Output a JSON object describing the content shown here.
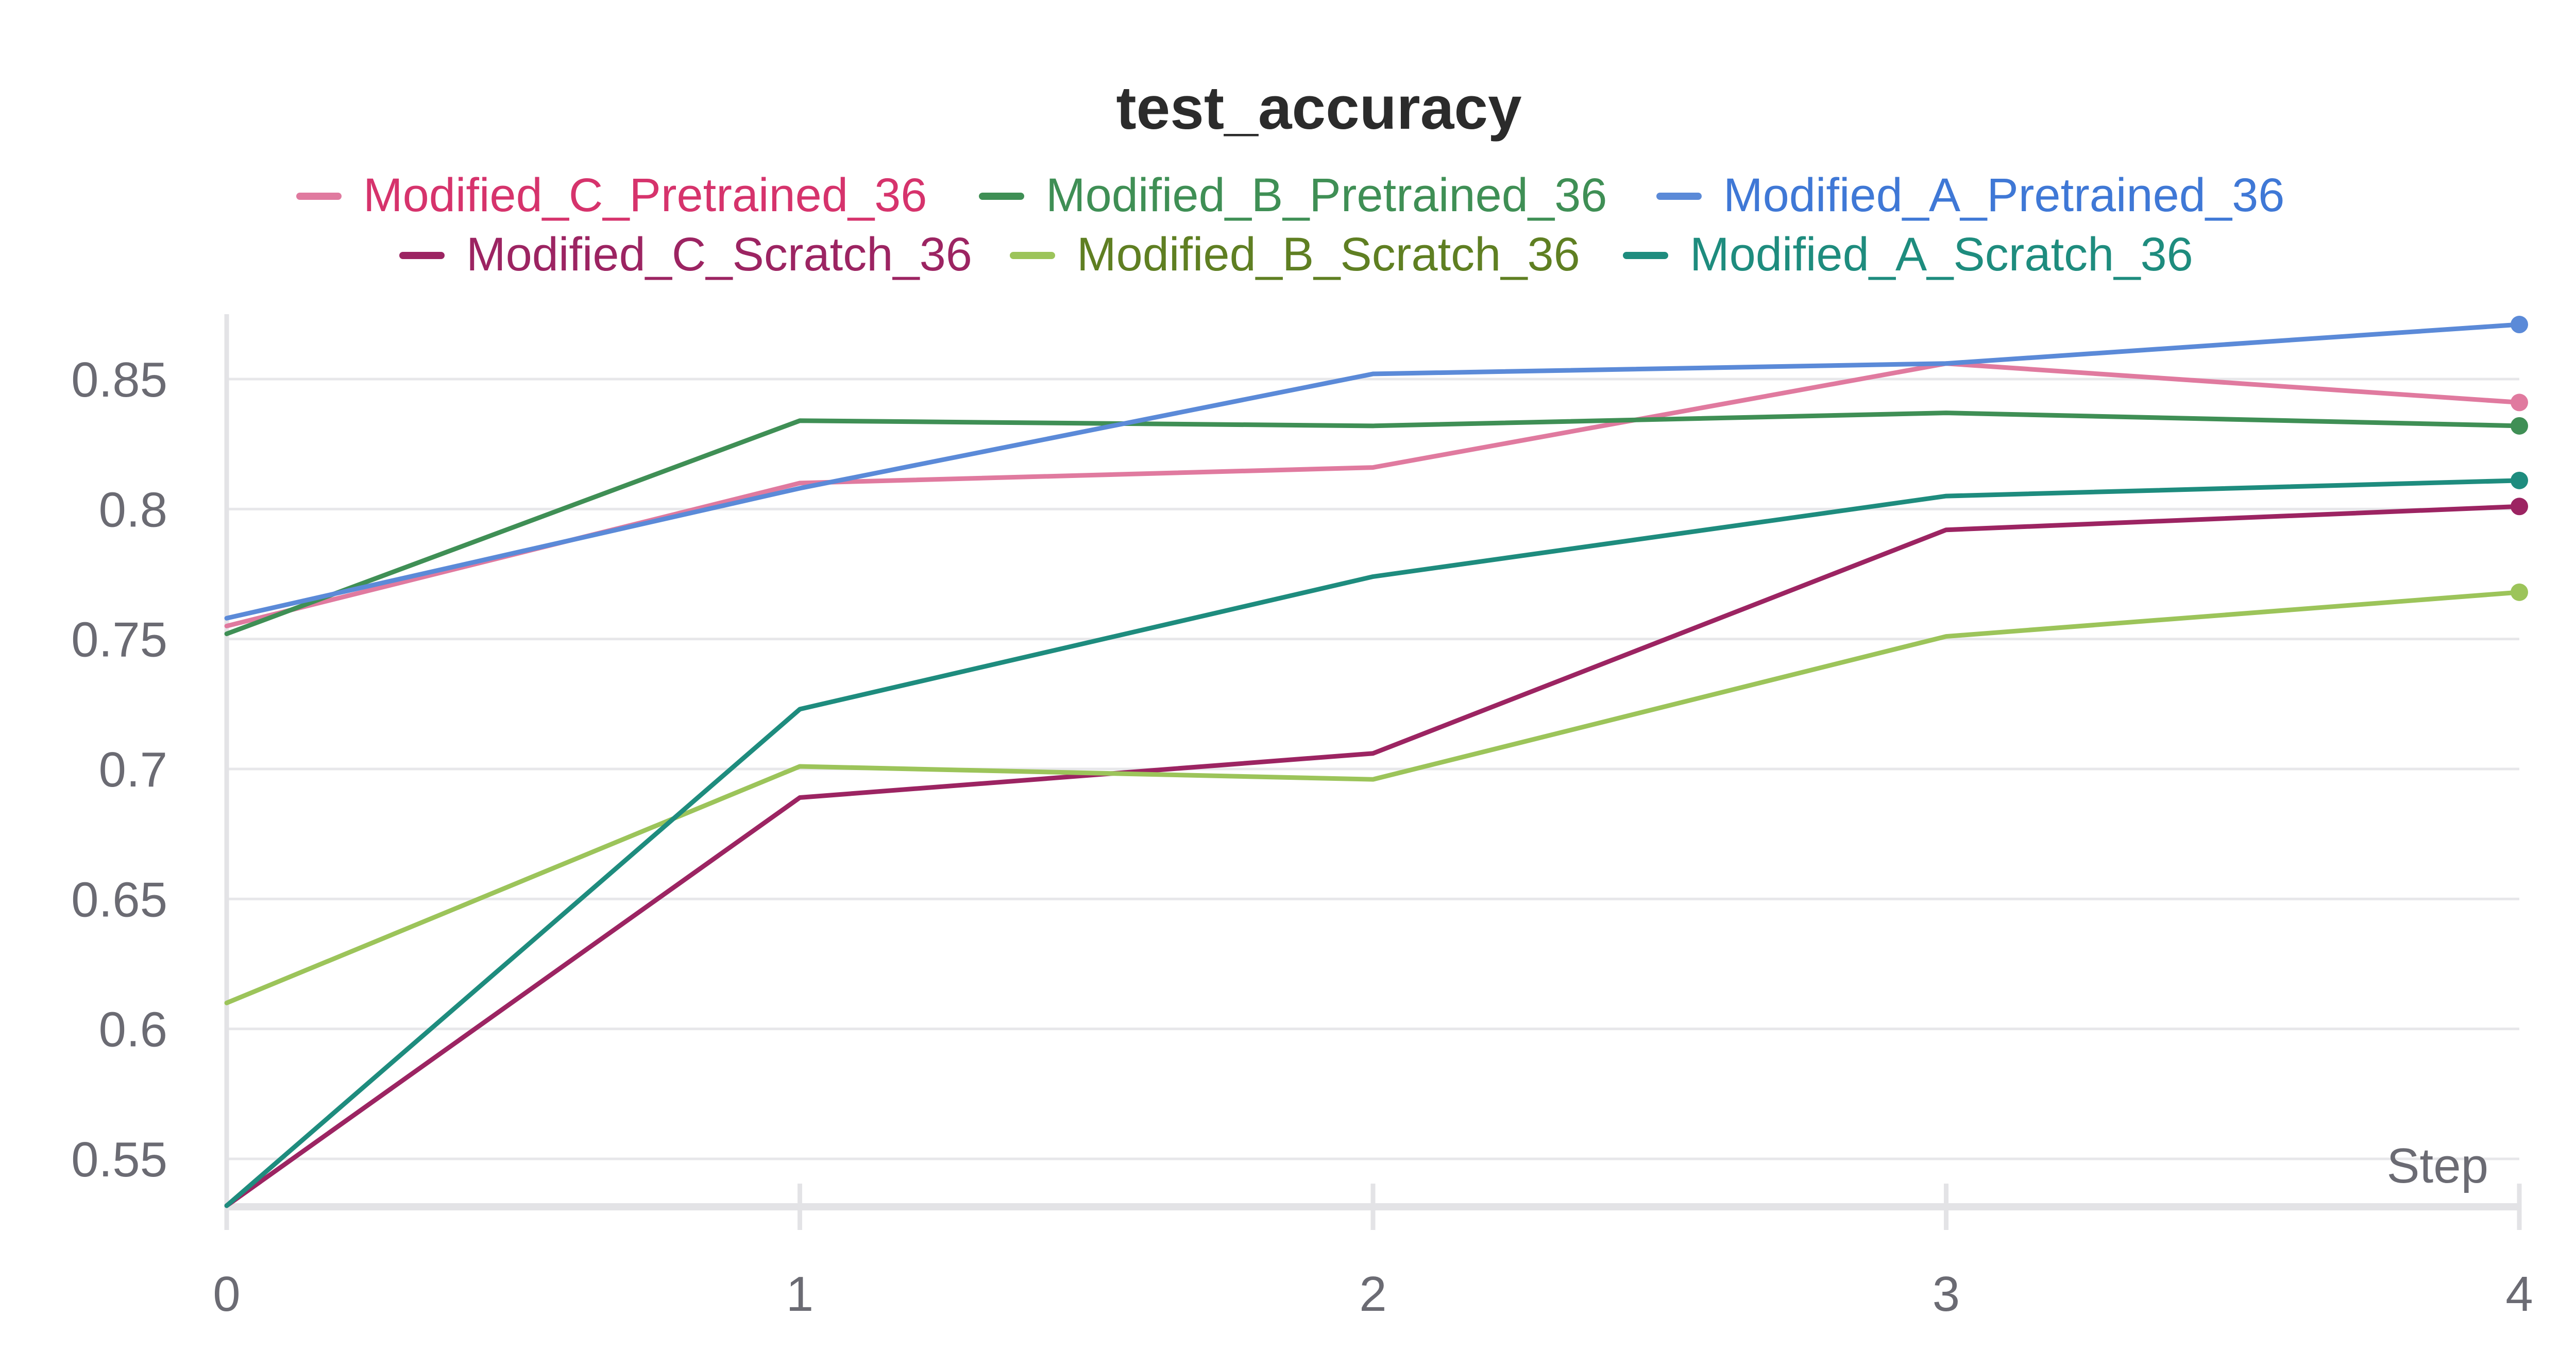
{
  "chart_data": {
    "type": "line",
    "title": "test_accuracy",
    "xlabel": "Step",
    "ylabel": "",
    "x": [
      0,
      1,
      2,
      3,
      4
    ],
    "xlim": [
      0,
      4
    ],
    "ylim": [
      0.532,
      0.87
    ],
    "y_ticks": [
      0.55,
      0.6,
      0.65,
      0.7,
      0.75,
      0.8,
      0.85
    ],
    "y_tick_labels": [
      "0.55",
      "0.6",
      "0.65",
      "0.7",
      "0.75",
      "0.8",
      "0.85"
    ],
    "x_ticks": [
      0,
      1,
      2,
      3,
      4
    ],
    "x_tick_labels": [
      "0",
      "1",
      "2",
      "3",
      "4"
    ],
    "grid": true,
    "legend_position": "top-center",
    "series": [
      {
        "name": "Modified_C_Pretrained_36",
        "color": "#e07a9f",
        "text_color": "#d6336c",
        "values": [
          0.755,
          0.81,
          0.816,
          0.856,
          0.841
        ]
      },
      {
        "name": "Modified_B_Pretrained_36",
        "color": "#3f8f55",
        "text_color": "#3f8f55",
        "values": [
          0.752,
          0.834,
          0.832,
          0.837,
          0.832
        ]
      },
      {
        "name": "Modified_A_Pretrained_36",
        "color": "#5b8ad8",
        "text_color": "#3f78d6",
        "values": [
          0.758,
          0.808,
          0.852,
          0.856,
          0.871
        ]
      },
      {
        "name": "Modified_C_Scratch_36",
        "color": "#9c2462",
        "text_color": "#9c2462",
        "values": [
          0.532,
          0.689,
          0.706,
          0.792,
          0.801
        ]
      },
      {
        "name": "Modified_B_Scratch_36",
        "color": "#9cc45a",
        "text_color": "#5f7f22",
        "values": [
          0.61,
          0.701,
          0.696,
          0.751,
          0.768
        ]
      },
      {
        "name": "Modified_A_Scratch_36",
        "color": "#1e8c7e",
        "text_color": "#1e8c7e",
        "values": [
          0.532,
          0.723,
          0.774,
          0.805,
          0.811
        ]
      }
    ]
  }
}
